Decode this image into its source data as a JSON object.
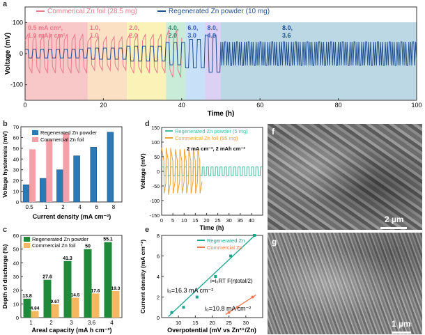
{
  "colors": {
    "regen": "#1f4e8f",
    "commercial": "#e87a8a",
    "green": "#3fbf9a",
    "orange": "#f0a030",
    "bar_regen": "#2a7ab8",
    "bar_comm": "#f5a0a8",
    "bar_green": "#1e8a3a",
    "bar_orange": "#f5b860",
    "line_regen": "#1aa58c",
    "line_comm": "#f07850"
  },
  "chart_data": [
    {
      "panel": "a",
      "type": "line",
      "xlabel": "Time (h)",
      "ylabel": "Voltage (mV)",
      "xlim": [
        0,
        100
      ],
      "ylim": [
        -150,
        150
      ],
      "xticks": [
        "0",
        "20",
        "40",
        "60",
        "80",
        "100"
      ],
      "yticks": [
        "-100",
        "0",
        "100"
      ],
      "series": [
        {
          "name": "Commerical Zn foil (28.5 mg)"
        },
        {
          "name": "Regenerated Zn powder (10 mg)"
        }
      ],
      "regions": [
        {
          "x0": 0,
          "x1": 16,
          "color": "#f8c8c8",
          "label_a": "0.5 mA cm²,",
          "label_b": "1.0 mAh cm²"
        },
        {
          "x0": 16,
          "x1": 26,
          "color": "#fbe0c4",
          "label_a": "1.0,",
          "label_b": "1.0"
        },
        {
          "x0": 26,
          "x1": 36,
          "color": "#fbf2b8",
          "label_a": "2.0,",
          "label_b": "2.0"
        },
        {
          "x0": 36,
          "x1": 41,
          "color": "#c8ecd8",
          "label_a": "4.0,",
          "label_b": "2.0"
        },
        {
          "x0": 41,
          "x1": 46,
          "color": "#c8e0f8",
          "label_a": "6.0,",
          "label_b": "3.0"
        },
        {
          "x0": 46,
          "x1": 50,
          "color": "#dcd0f4",
          "label_a": "8.0,",
          "label_b": "4.0"
        },
        {
          "x0": 50,
          "x1": 100,
          "color": "#bcd8e4",
          "label_a": "8.0,",
          "label_b": "3.6"
        }
      ]
    },
    {
      "panel": "b",
      "type": "bar",
      "xlabel": "Current density (mA cm⁻²)",
      "ylabel": "Voltage hysteresis (mV)",
      "ylim": [
        0,
        70
      ],
      "yticks": [
        "0",
        "10",
        "20",
        "30",
        "40",
        "50",
        "60",
        "70"
      ],
      "categories": [
        "0.5",
        "1",
        "2",
        "4",
        "6",
        "8"
      ],
      "series": [
        {
          "name": "Regenerated Zn powder",
          "values": [
            16,
            22,
            30,
            43,
            51,
            65
          ]
        },
        {
          "name": "Commercial Zn foil",
          "values": [
            49,
            58,
            64,
            null,
            null,
            null
          ]
        }
      ]
    },
    {
      "panel": "c",
      "type": "bar",
      "xlabel": "Areal capacity (mA h cm⁻²)",
      "ylabel": "Depth of discharge (%)",
      "ylim": [
        0,
        60
      ],
      "yticks": [
        "0",
        "10",
        "20",
        "30",
        "40",
        "50",
        "60"
      ],
      "categories": [
        "1",
        "2",
        "3",
        "3.6",
        "4"
      ],
      "series": [
        {
          "name": "Regenerated Zn powder",
          "values": [
            13.8,
            27.6,
            41.3,
            50,
            55.1
          ],
          "labels": [
            "13.8",
            "27.6",
            "41.3",
            "50",
            "55.1"
          ]
        },
        {
          "name": "Commercial Zn foil",
          "values": [
            4.84,
            9.67,
            14.5,
            17.6,
            19.3
          ],
          "labels": [
            "4.84",
            "9.67",
            "14.5",
            "17.6",
            "19.3"
          ]
        }
      ]
    },
    {
      "panel": "d",
      "type": "line",
      "xlabel": "Time (h)",
      "ylabel": "Voltage (mV)",
      "xlim": [
        0,
        45
      ],
      "ylim": [
        -150,
        150
      ],
      "xticks": [
        "0",
        "5",
        "10",
        "15",
        "20",
        "25",
        "30",
        "35",
        "40"
      ],
      "yticks": [
        "-150",
        "-100",
        "-50",
        "0",
        "50",
        "100",
        "150"
      ],
      "annotation": "2 mA cm⁻², 2 mAh cm⁻²",
      "series": [
        {
          "name": "Regenerated Zn powder (5 mg)"
        },
        {
          "name": "Commerical Zn foil (95 mg)"
        }
      ]
    },
    {
      "panel": "e",
      "type": "scatter",
      "xlabel": "Overpotential (mV vs Zn²⁺/Zn)",
      "ylabel": "Current density (mA cm⁻²)",
      "xlim": [
        5,
        35
      ],
      "ylim": [
        0,
        8
      ],
      "xticks": [
        "10",
        "15",
        "20",
        "25",
        "30"
      ],
      "yticks": [
        "0",
        "2",
        "4",
        "6",
        "8"
      ],
      "series": [
        {
          "name": "Regenerated Zn",
          "x": [
            8,
            11.5,
            15.5,
            21,
            25.5,
            32.5
          ],
          "y": [
            0.5,
            1.0,
            2.0,
            4.0,
            6.0,
            8.0
          ]
        },
        {
          "name": "Commercial Zn",
          "x": [
            25,
            27.5,
            32
          ],
          "y": [
            0.5,
            1.0,
            2.0
          ]
        }
      ],
      "annotations": [
        "i₀=16.3 mA cm⁻²",
        "i₀=10.8 mA cm⁻²",
        "i=i₀RT F(ηtotal/2)"
      ]
    }
  ],
  "panel_labels": {
    "a": "a",
    "b": "b",
    "c": "c",
    "d": "d",
    "e": "e",
    "f": "f",
    "g": "g"
  },
  "scalebars": {
    "f": "2 µm",
    "g": "1 µm"
  }
}
